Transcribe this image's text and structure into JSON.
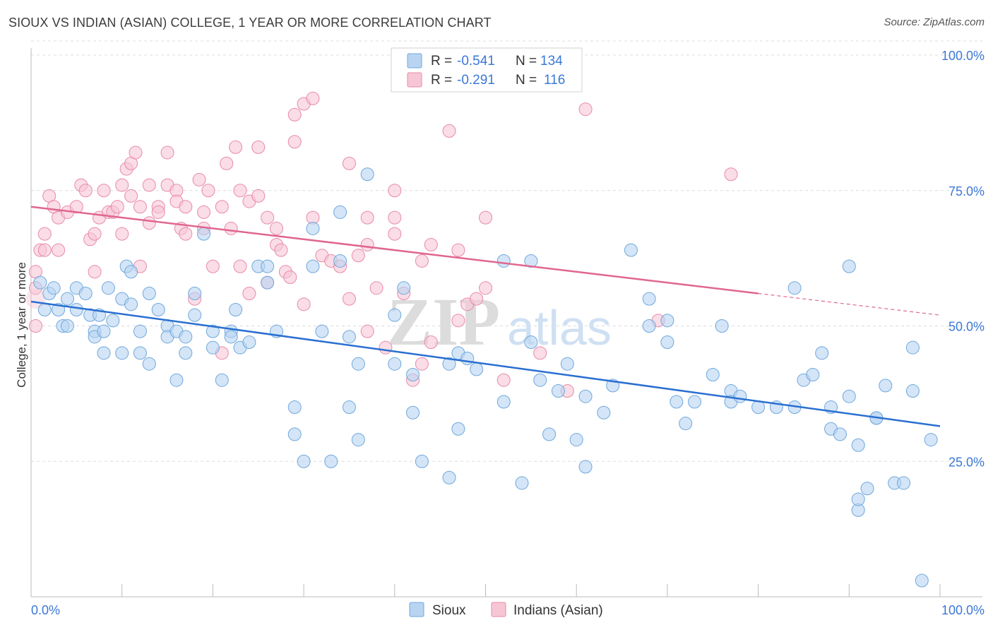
{
  "title": "SIOUX VS INDIAN (ASIAN) COLLEGE, 1 YEAR OR MORE CORRELATION CHART",
  "source": "Source: ZipAtlas.com",
  "watermark": {
    "zip": "ZIP",
    "atlas": "atlas"
  },
  "colors": {
    "sioux": "#6fa8dc",
    "sioux_fill": "#b8d4f1",
    "sioux_line": "#2a6fd1",
    "indians": "#e88aa8",
    "indians_fill": "#f7c6d5",
    "indians_line": "#e0668f",
    "tick_text": "#3b78d6",
    "grid": "#dcdcdc"
  },
  "legend": {
    "r_label": "R =",
    "n_label": "N =",
    "entries": [
      {
        "r": "-0.541",
        "n": "134"
      },
      {
        "r": "-0.291",
        "n": "116"
      }
    ]
  },
  "chart_data": {
    "type": "scatter",
    "xlabel": "",
    "ylabel": "College, 1 year or more",
    "xlim": [
      0,
      100
    ],
    "ylim": [
      0,
      100
    ],
    "x_tick_labels": [
      "0.0%",
      "100.0%"
    ],
    "y_tick_labels": [
      "25.0%",
      "50.0%",
      "75.0%",
      "100.0%"
    ],
    "y_ticks": [
      25,
      50,
      75,
      100
    ],
    "grid": true,
    "legend_placement": "top-center",
    "series": [
      {
        "name": "Sioux",
        "trend": {
          "x": [
            0,
            100
          ],
          "y": [
            54.5,
            31.5
          ]
        },
        "points": [
          [
            1,
            58
          ],
          [
            1.5,
            53
          ],
          [
            2,
            56
          ],
          [
            2.5,
            57
          ],
          [
            3,
            53
          ],
          [
            3.5,
            50
          ],
          [
            4,
            50
          ],
          [
            4,
            55
          ],
          [
            5,
            57
          ],
          [
            5,
            53
          ],
          [
            6,
            56
          ],
          [
            6.5,
            52
          ],
          [
            7,
            49
          ],
          [
            7,
            48
          ],
          [
            7.5,
            52
          ],
          [
            8,
            49
          ],
          [
            8.5,
            57
          ],
          [
            8,
            45
          ],
          [
            9,
            51
          ],
          [
            10,
            55
          ],
          [
            10,
            45
          ],
          [
            10.5,
            61
          ],
          [
            11,
            54
          ],
          [
            11,
            60
          ],
          [
            12,
            49
          ],
          [
            12,
            45
          ],
          [
            13,
            56
          ],
          [
            13,
            43
          ],
          [
            14,
            53
          ],
          [
            15,
            50
          ],
          [
            15,
            48
          ],
          [
            16,
            49
          ],
          [
            16,
            40
          ],
          [
            17,
            45
          ],
          [
            17,
            48
          ],
          [
            18,
            56
          ],
          [
            18,
            52
          ],
          [
            19,
            67
          ],
          [
            20,
            49
          ],
          [
            20,
            46
          ],
          [
            21,
            40
          ],
          [
            22,
            49
          ],
          [
            22,
            48
          ],
          [
            22.5,
            53
          ],
          [
            23,
            46
          ],
          [
            24,
            47
          ],
          [
            25,
            61
          ],
          [
            26,
            61
          ],
          [
            26,
            58
          ],
          [
            27,
            49
          ],
          [
            29,
            35
          ],
          [
            29,
            30
          ],
          [
            30,
            25
          ],
          [
            31,
            61
          ],
          [
            31,
            68
          ],
          [
            32,
            49
          ],
          [
            33,
            25
          ],
          [
            34,
            71
          ],
          [
            34,
            62
          ],
          [
            35,
            35
          ],
          [
            35,
            48
          ],
          [
            36,
            43
          ],
          [
            36,
            29
          ],
          [
            37,
            78
          ],
          [
            40,
            52
          ],
          [
            40,
            43
          ],
          [
            41,
            57
          ],
          [
            42,
            34
          ],
          [
            42,
            41
          ],
          [
            43,
            25
          ],
          [
            46,
            22
          ],
          [
            46,
            43
          ],
          [
            47,
            31
          ],
          [
            47,
            45
          ],
          [
            48,
            44
          ],
          [
            49,
            42
          ],
          [
            52,
            36
          ],
          [
            52,
            62
          ],
          [
            54,
            21
          ],
          [
            55,
            62
          ],
          [
            55,
            47
          ],
          [
            56,
            40
          ],
          [
            57,
            30
          ],
          [
            58,
            38
          ],
          [
            59,
            43
          ],
          [
            60,
            29
          ],
          [
            61,
            37
          ],
          [
            61,
            24
          ],
          [
            63,
            34
          ],
          [
            64,
            39
          ],
          [
            66,
            64
          ],
          [
            68,
            55
          ],
          [
            68,
            50
          ],
          [
            70,
            47
          ],
          [
            70,
            51
          ],
          [
            71,
            36
          ],
          [
            72,
            32
          ],
          [
            73,
            36
          ],
          [
            75,
            41
          ],
          [
            76,
            50
          ],
          [
            77,
            38
          ],
          [
            77,
            36
          ],
          [
            78,
            37
          ],
          [
            80,
            35
          ],
          [
            82,
            35
          ],
          [
            84,
            57
          ],
          [
            84,
            35
          ],
          [
            85,
            40
          ],
          [
            86,
            41
          ],
          [
            87,
            45
          ],
          [
            88,
            35
          ],
          [
            88,
            31
          ],
          [
            89,
            30
          ],
          [
            90,
            37
          ],
          [
            90,
            61
          ],
          [
            91,
            28
          ],
          [
            91,
            16
          ],
          [
            91,
            18
          ],
          [
            92,
            20
          ],
          [
            93,
            33
          ],
          [
            93,
            33
          ],
          [
            94,
            39
          ],
          [
            95,
            21
          ],
          [
            96,
            21
          ],
          [
            97,
            38
          ],
          [
            97,
            46
          ],
          [
            98,
            3
          ],
          [
            99,
            29
          ]
        ]
      },
      {
        "name": "Indians (Asian)",
        "trend": {
          "x": [
            0,
            80
          ],
          "y": [
            72,
            56
          ]
        },
        "trend_ext": {
          "x": [
            80,
            100
          ],
          "y": [
            56,
            52
          ]
        },
        "points": [
          [
            0.5,
            60
          ],
          [
            0.5,
            57
          ],
          [
            0.5,
            50
          ],
          [
            1,
            64
          ],
          [
            1.5,
            67
          ],
          [
            1.5,
            64
          ],
          [
            2,
            74
          ],
          [
            2.5,
            72
          ],
          [
            3,
            70
          ],
          [
            3,
            64
          ],
          [
            4,
            71
          ],
          [
            5,
            72
          ],
          [
            5.5,
            76
          ],
          [
            6,
            75
          ],
          [
            6.5,
            66
          ],
          [
            7,
            67
          ],
          [
            7,
            60
          ],
          [
            7.5,
            70
          ],
          [
            8,
            75
          ],
          [
            8.5,
            71
          ],
          [
            9,
            71
          ],
          [
            9.5,
            72
          ],
          [
            10,
            67
          ],
          [
            10,
            76
          ],
          [
            10.5,
            79
          ],
          [
            11,
            80
          ],
          [
            11,
            74
          ],
          [
            11.5,
            82
          ],
          [
            12,
            72
          ],
          [
            12,
            61
          ],
          [
            13,
            69
          ],
          [
            13,
            76
          ],
          [
            14,
            72
          ],
          [
            14,
            71
          ],
          [
            15,
            76
          ],
          [
            15,
            82
          ],
          [
            16,
            75
          ],
          [
            16,
            73
          ],
          [
            16.5,
            68
          ],
          [
            17,
            72
          ],
          [
            17,
            67
          ],
          [
            18,
            55
          ],
          [
            18.5,
            77
          ],
          [
            19,
            71
          ],
          [
            19,
            68
          ],
          [
            19.5,
            75
          ],
          [
            20,
            61
          ],
          [
            21,
            45
          ],
          [
            21,
            72
          ],
          [
            21.5,
            80
          ],
          [
            22,
            68
          ],
          [
            22.5,
            83
          ],
          [
            23,
            61
          ],
          [
            23,
            75
          ],
          [
            24,
            73
          ],
          [
            24,
            56
          ],
          [
            25,
            83
          ],
          [
            25,
            74
          ],
          [
            26,
            70
          ],
          [
            26,
            58
          ],
          [
            27,
            68
          ],
          [
            27,
            65
          ],
          [
            27.5,
            64
          ],
          [
            28,
            60
          ],
          [
            28.5,
            59
          ],
          [
            29,
            84
          ],
          [
            29,
            89
          ],
          [
            30,
            91
          ],
          [
            30,
            54
          ],
          [
            31,
            92
          ],
          [
            31,
            70
          ],
          [
            32,
            63
          ],
          [
            33,
            62
          ],
          [
            34,
            61
          ],
          [
            35,
            55
          ],
          [
            35,
            80
          ],
          [
            36,
            63
          ],
          [
            37,
            70
          ],
          [
            37,
            65
          ],
          [
            37,
            49
          ],
          [
            38,
            57
          ],
          [
            39,
            46
          ],
          [
            40,
            67
          ],
          [
            40,
            75
          ],
          [
            40,
            70
          ],
          [
            41,
            56
          ],
          [
            42,
            40
          ],
          [
            43,
            62
          ],
          [
            43,
            43
          ],
          [
            44,
            65
          ],
          [
            44,
            47
          ],
          [
            46,
            86
          ],
          [
            47,
            64
          ],
          [
            47,
            51
          ],
          [
            48,
            54
          ],
          [
            49,
            55
          ],
          [
            50,
            57
          ],
          [
            50,
            70
          ],
          [
            52,
            40
          ],
          [
            56,
            45
          ],
          [
            59,
            38
          ],
          [
            61,
            90
          ],
          [
            69,
            51
          ],
          [
            77,
            78
          ]
        ]
      }
    ]
  }
}
